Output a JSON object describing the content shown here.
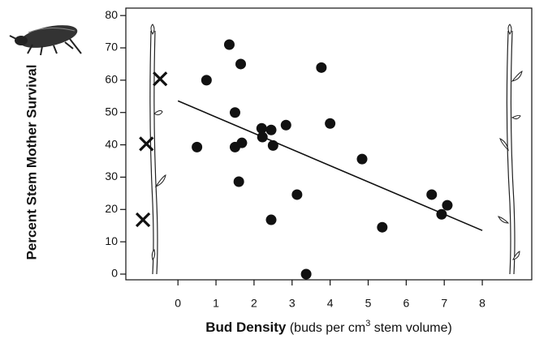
{
  "chart_data": {
    "type": "scatter",
    "ylabel": "Percent Stem Mother Survival",
    "xlabel": {
      "bold": "Bud Density",
      "pre": " (buds per cm",
      "sup": "3",
      "post": " stem volume)"
    },
    "x": [
      0.75,
      1.35,
      1.65,
      1.5,
      0.5,
      1.5,
      1.68,
      1.6,
      2.2,
      2.22,
      2.45,
      2.5,
      2.84,
      2.45,
      3.13,
      3.37,
      3.77,
      4.0,
      4.84,
      5.37,
      6.67,
      7.08,
      6.93
    ],
    "values": [
      60,
      71,
      65,
      50,
      39.3,
      39.3,
      40.6,
      28.6,
      45.1,
      42.4,
      44.6,
      39.8,
      46.1,
      16.8,
      24.6,
      0,
      63.9,
      46.6,
      35.6,
      14.5,
      24.6,
      21.3,
      18.5
    ],
    "color": "#111111",
    "crosses": {
      "x": [
        -0.47,
        -0.83,
        -0.92
      ],
      "values": [
        60.4,
        40.3,
        16.8
      ]
    },
    "fit_line": {
      "x": [
        0,
        8
      ],
      "values": [
        53.6,
        13.5
      ]
    },
    "xlim": [
      -1.37,
      9.3
    ],
    "ylim": [
      -1.76,
      82.3
    ],
    "xticks": [
      0,
      1,
      2,
      3,
      4,
      5,
      6,
      7,
      8
    ],
    "yticks": [
      0,
      10,
      20,
      30,
      40,
      50,
      60,
      70,
      80
    ]
  }
}
